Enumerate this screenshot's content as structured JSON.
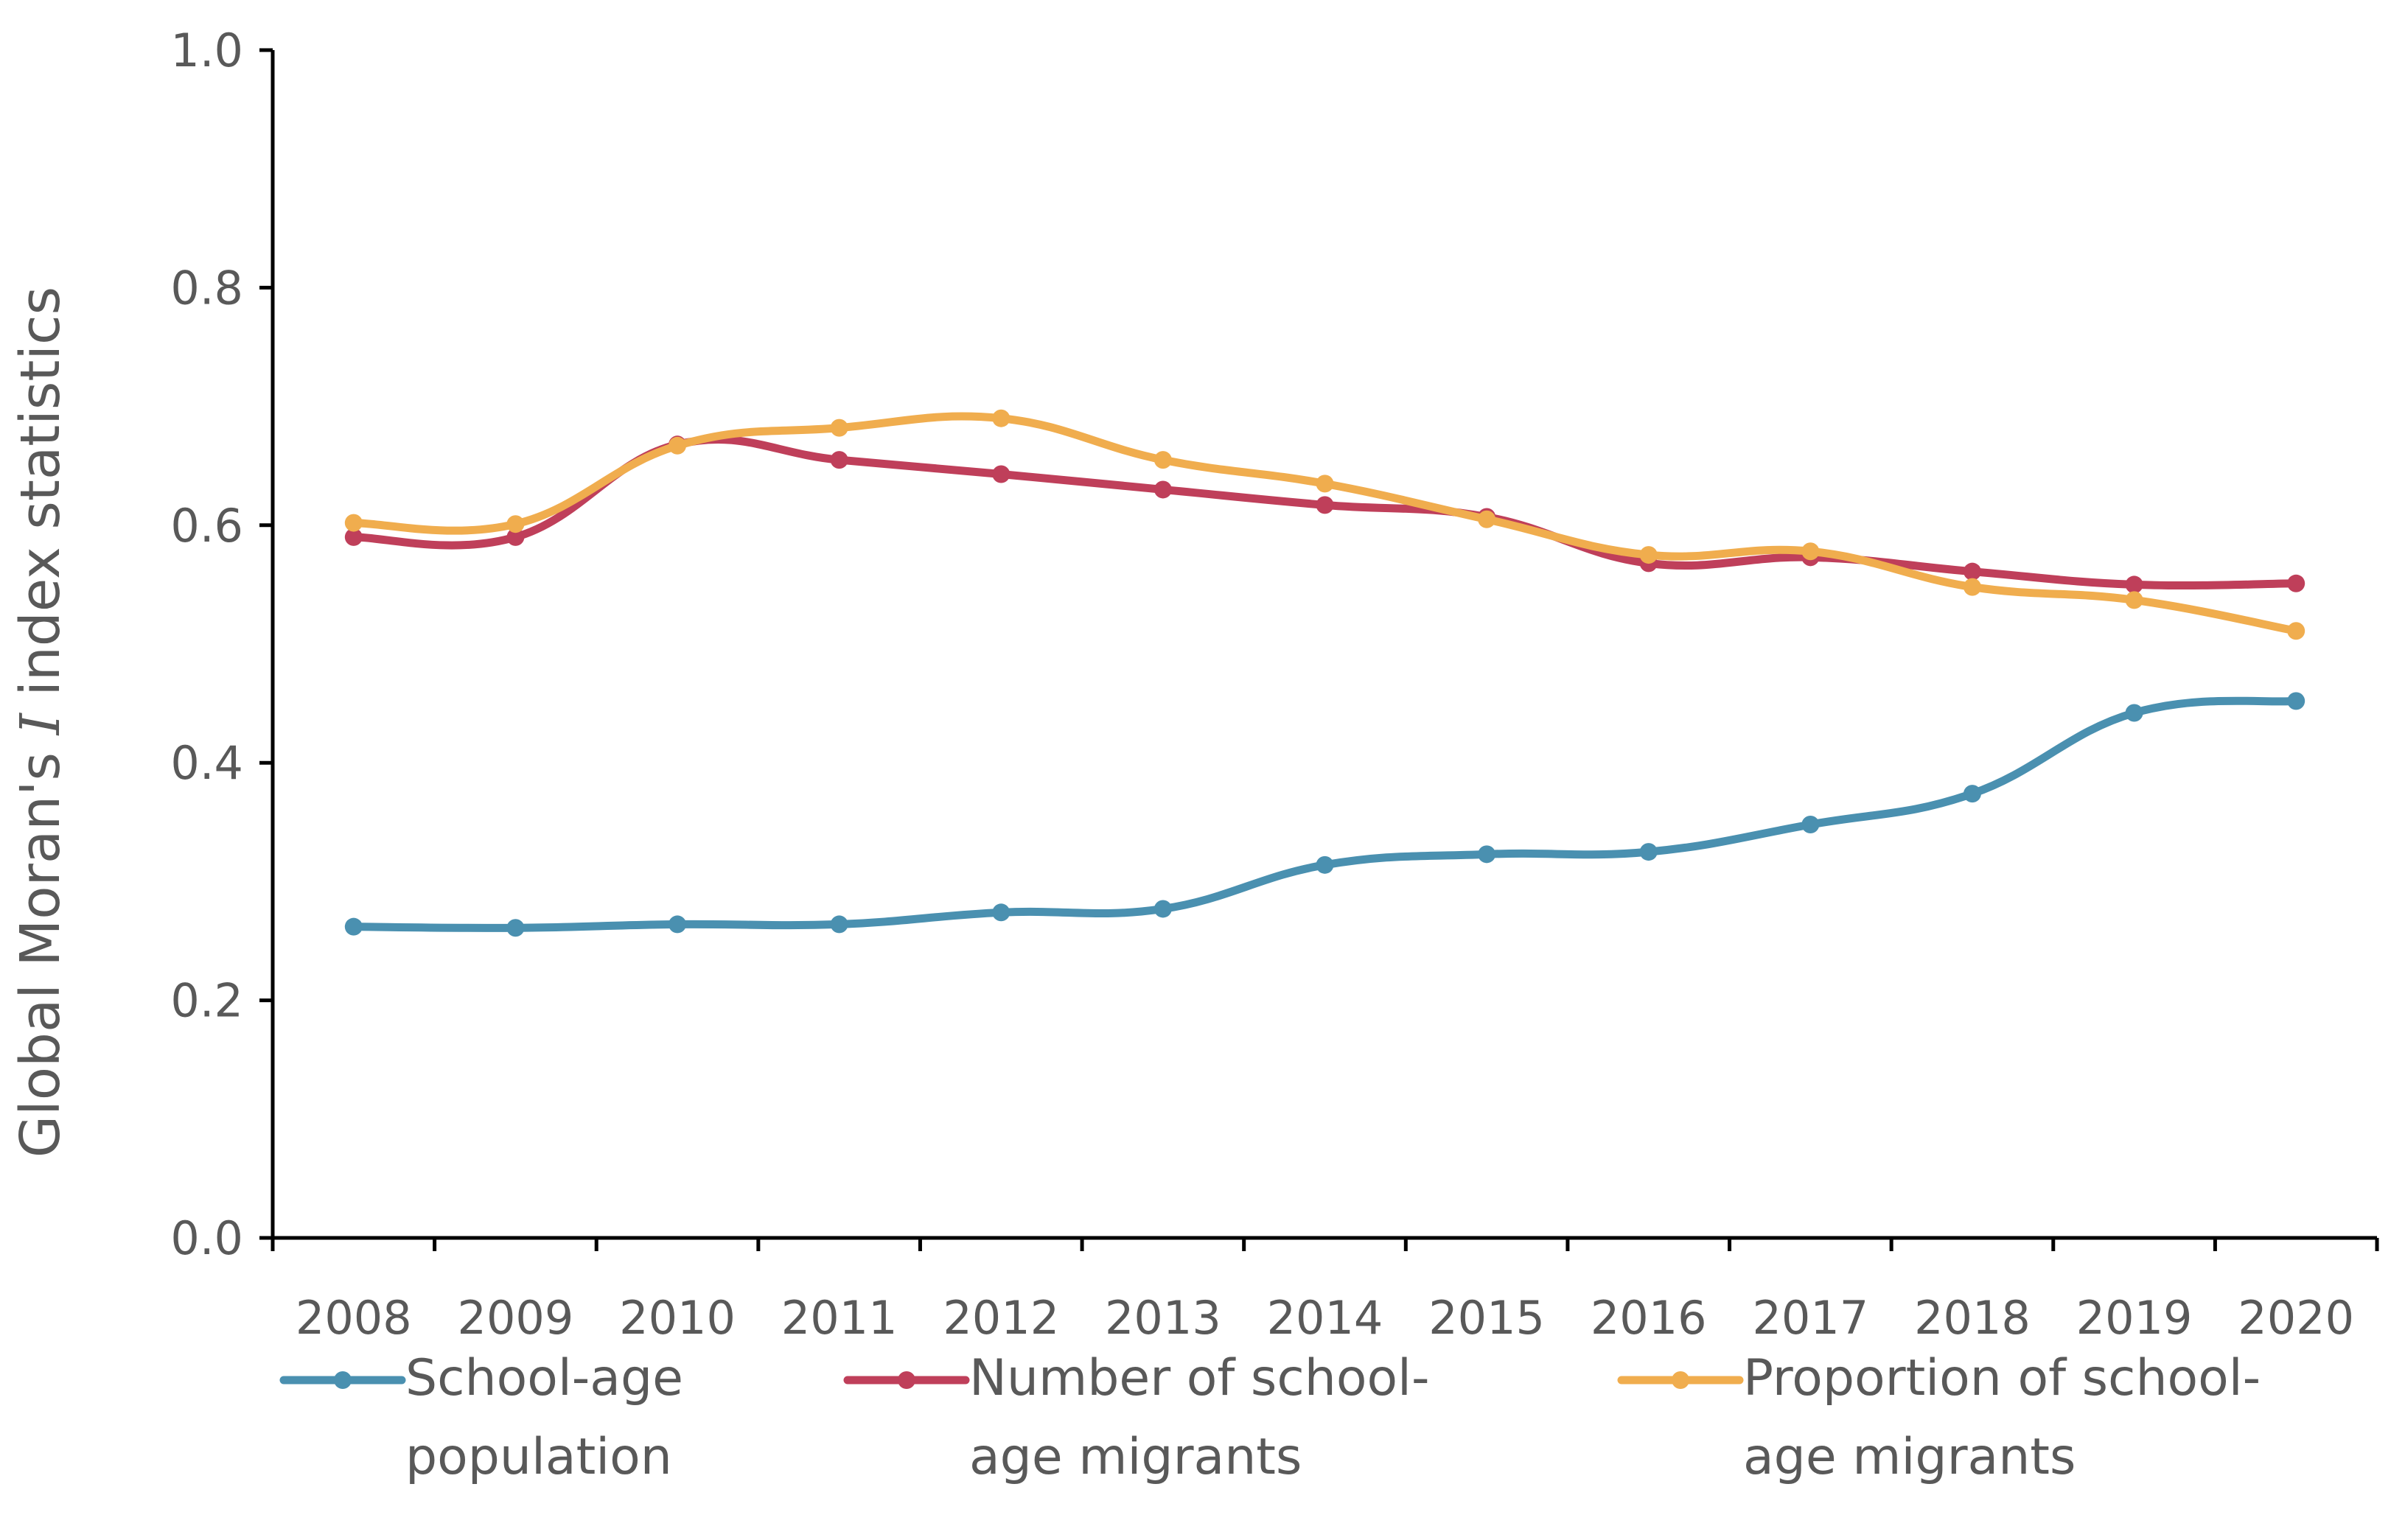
{
  "chart_data": {
    "type": "line",
    "title": "",
    "xlabel": "",
    "ylabel": {
      "before": "Global Moran's ",
      "italic": "I",
      "after": " index statistics"
    },
    "ylim": [
      0,
      1.0
    ],
    "y_ticks": [
      "0.0",
      "0.2",
      "0.4",
      "0.6",
      "0.8",
      "1.0"
    ],
    "categories": [
      "2008",
      "2009",
      "2010",
      "2011",
      "2012",
      "2013",
      "2014",
      "2015",
      "2016",
      "2017",
      "2018",
      "2019",
      "2020"
    ],
    "grid": false,
    "legend_position": "bottom",
    "series": [
      {
        "name": "School-age population",
        "legend_lines": [
          "School-age",
          "population"
        ],
        "color": "#4a90b0",
        "values": [
          0.262,
          0.261,
          0.264,
          0.264,
          0.274,
          0.277,
          0.314,
          0.323,
          0.325,
          0.348,
          0.374,
          0.442,
          0.452
        ]
      },
      {
        "name": "Number of school-age migrants",
        "legend_lines": [
          "Number of school-",
          "age migrants"
        ],
        "color": "#bf3f5a",
        "values": [
          0.59,
          0.59,
          0.668,
          0.655,
          0.643,
          0.63,
          0.617,
          0.607,
          0.568,
          0.573,
          0.561,
          0.55,
          0.551
        ]
      },
      {
        "name": "Proportion of school-age migrants",
        "legend_lines": [
          "Proportion of school-",
          "age migrants"
        ],
        "color": "#f0ad4e",
        "values": [
          0.602,
          0.601,
          0.667,
          0.682,
          0.69,
          0.655,
          0.635,
          0.605,
          0.575,
          0.578,
          0.548,
          0.537,
          0.511
        ]
      }
    ]
  }
}
